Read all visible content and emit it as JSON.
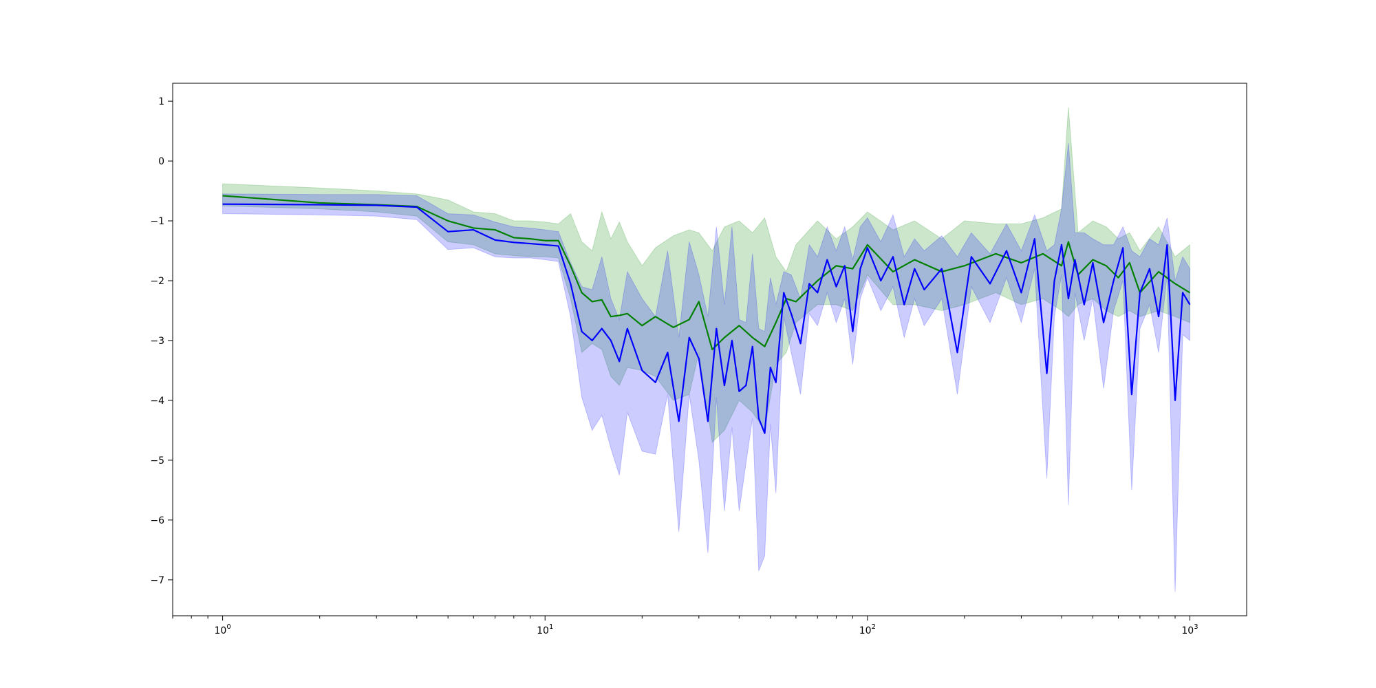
{
  "chart_data": {
    "type": "line",
    "title": "",
    "xlabel": "",
    "ylabel": "",
    "x_scale": "log",
    "xlim": [
      0.7,
      1500
    ],
    "ylim": [
      -7.6,
      1.3
    ],
    "grid": false,
    "x_ticks": [
      {
        "value": 1,
        "base": "10",
        "exp": "0"
      },
      {
        "value": 10,
        "base": "10",
        "exp": "1"
      },
      {
        "value": 100,
        "base": "10",
        "exp": "2"
      },
      {
        "value": 1000,
        "base": "10",
        "exp": "3"
      }
    ],
    "y_ticks": [
      {
        "value": 1,
        "label": "1"
      },
      {
        "value": 0,
        "label": "0"
      },
      {
        "value": -1,
        "label": "−1"
      },
      {
        "value": -2,
        "label": "−2"
      },
      {
        "value": -3,
        "label": "−3"
      },
      {
        "value": -4,
        "label": "−4"
      },
      {
        "value": -5,
        "label": "−5"
      },
      {
        "value": -6,
        "label": "−6"
      },
      {
        "value": -7,
        "label": "−7"
      }
    ],
    "series": [
      {
        "color": "#008000",
        "band_color": "#008000",
        "band_opacity": 0.2,
        "x": [
          1,
          2,
          3,
          4,
          5,
          6,
          7,
          8,
          9,
          10,
          11,
          12,
          13,
          14,
          15,
          16,
          17,
          18,
          20,
          22,
          25,
          28,
          30,
          33,
          36,
          40,
          44,
          48,
          52,
          56,
          60,
          70,
          80,
          90,
          100,
          120,
          140,
          170,
          200,
          250,
          300,
          350,
          400,
          420,
          450,
          500,
          550,
          600,
          650,
          700,
          800,
          900,
          1000
        ],
        "y": [
          -0.58,
          -0.7,
          -0.73,
          -0.76,
          -1.0,
          -1.12,
          -1.15,
          -1.28,
          -1.3,
          -1.33,
          -1.33,
          -1.75,
          -2.2,
          -2.35,
          -2.32,
          -2.6,
          -2.58,
          -2.55,
          -2.75,
          -2.6,
          -2.78,
          -2.65,
          -2.35,
          -3.15,
          -2.95,
          -2.75,
          -2.95,
          -3.1,
          -2.7,
          -2.3,
          -2.35,
          -2.0,
          -1.75,
          -1.8,
          -1.4,
          -1.85,
          -1.65,
          -1.85,
          -1.75,
          -1.55,
          -1.7,
          -1.55,
          -1.75,
          -1.35,
          -1.9,
          -1.65,
          -1.75,
          -1.95,
          -1.7,
          -2.2,
          -1.85,
          -2.05,
          -2.2
        ],
        "upper": [
          -0.38,
          -0.45,
          -0.5,
          -0.55,
          -0.65,
          -0.85,
          -0.88,
          -1.0,
          -1.0,
          -1.02,
          -1.05,
          -0.88,
          -1.35,
          -1.5,
          -0.85,
          -1.3,
          -1.02,
          -1.35,
          -1.75,
          -1.45,
          -1.25,
          -1.15,
          -1.2,
          -1.5,
          -1.1,
          -1.0,
          -1.2,
          -0.95,
          -1.6,
          -1.85,
          -1.4,
          -1.0,
          -1.3,
          -1.1,
          -0.85,
          -1.15,
          -1.0,
          -1.3,
          -1.0,
          -1.05,
          -1.05,
          -0.95,
          -0.8,
          0.9,
          -1.2,
          -1.0,
          -1.1,
          -1.3,
          -1.2,
          -1.5,
          -1.1,
          -1.6,
          -1.4
        ],
        "lower": [
          -0.75,
          -0.8,
          -0.85,
          -0.92,
          -1.35,
          -1.4,
          -1.55,
          -1.58,
          -1.6,
          -1.6,
          -1.62,
          -2.3,
          -3.2,
          -3.05,
          -3.15,
          -3.6,
          -3.75,
          -3.45,
          -3.5,
          -3.6,
          -4.0,
          -3.9,
          -3.2,
          -4.7,
          -4.5,
          -4.0,
          -4.2,
          -4.5,
          -3.4,
          -3.2,
          -2.7,
          -2.4,
          -2.4,
          -2.5,
          -1.9,
          -2.4,
          -2.4,
          -2.5,
          -2.4,
          -2.2,
          -2.4,
          -2.3,
          -2.5,
          -2.6,
          -2.4,
          -2.3,
          -2.5,
          -2.6,
          -2.5,
          -2.6,
          -2.5,
          -2.6,
          -2.7
        ]
      },
      {
        "color": "#0000ff",
        "band_color": "#0000ff",
        "band_opacity": 0.2,
        "x": [
          1,
          2,
          3,
          4,
          5,
          6,
          7,
          8,
          9,
          10,
          11,
          12,
          13,
          14,
          15,
          16,
          17,
          18,
          20,
          22,
          24,
          26,
          28,
          30,
          32,
          34,
          36,
          38,
          40,
          42,
          44,
          46,
          48,
          50,
          52,
          55,
          58,
          62,
          66,
          70,
          75,
          80,
          85,
          90,
          95,
          100,
          110,
          120,
          130,
          140,
          150,
          170,
          190,
          210,
          240,
          270,
          300,
          330,
          360,
          380,
          400,
          420,
          440,
          470,
          500,
          540,
          580,
          620,
          660,
          700,
          750,
          800,
          850,
          900,
          950,
          1000
        ],
        "y": [
          -0.72,
          -0.73,
          -0.74,
          -0.77,
          -1.18,
          -1.15,
          -1.32,
          -1.36,
          -1.38,
          -1.4,
          -1.42,
          -2.05,
          -2.85,
          -3.0,
          -2.8,
          -3.0,
          -3.35,
          -2.8,
          -3.5,
          -3.7,
          -3.2,
          -4.35,
          -2.95,
          -3.3,
          -4.35,
          -2.8,
          -3.75,
          -3.0,
          -3.85,
          -3.75,
          -3.1,
          -4.3,
          -4.55,
          -3.45,
          -3.7,
          -2.2,
          -2.55,
          -3.05,
          -2.05,
          -2.2,
          -1.65,
          -2.1,
          -1.75,
          -2.85,
          -1.8,
          -1.45,
          -2.0,
          -1.6,
          -2.4,
          -1.8,
          -2.15,
          -1.8,
          -3.2,
          -1.6,
          -2.05,
          -1.5,
          -2.2,
          -1.3,
          -3.55,
          -2.0,
          -1.4,
          -2.3,
          -1.65,
          -2.4,
          -1.7,
          -2.7,
          -2.0,
          -1.45,
          -3.9,
          -2.2,
          -1.8,
          -2.6,
          -1.4,
          -4.0,
          -2.2,
          -2.4
        ],
        "upper": [
          -0.55,
          -0.56,
          -0.56,
          -0.58,
          -0.88,
          -0.9,
          -1.02,
          -1.1,
          -1.12,
          -1.15,
          -1.18,
          -1.7,
          -2.1,
          -2.15,
          -1.6,
          -2.3,
          -2.65,
          -1.85,
          -2.3,
          -2.6,
          -1.5,
          -2.95,
          -1.35,
          -1.9,
          -2.6,
          -1.1,
          -2.4,
          -1.1,
          -2.65,
          -2.7,
          -1.55,
          -2.8,
          -2.85,
          -1.95,
          -2.4,
          -1.85,
          -1.9,
          -2.3,
          -1.4,
          -1.6,
          -1.1,
          -1.5,
          -1.1,
          -1.65,
          -1.1,
          -0.95,
          -1.35,
          -0.9,
          -1.6,
          -1.3,
          -1.5,
          -1.25,
          -1.6,
          -1.2,
          -1.55,
          -1.05,
          -1.5,
          -0.9,
          -1.5,
          -1.4,
          -0.8,
          0.3,
          -1.2,
          -1.2,
          -1.3,
          -1.4,
          -1.4,
          -1.1,
          -1.5,
          -1.6,
          -1.3,
          -1.4,
          -0.95,
          -2.0,
          -1.6,
          -1.8
        ],
        "lower": [
          -0.88,
          -0.9,
          -0.92,
          -0.98,
          -1.48,
          -1.45,
          -1.6,
          -1.62,
          -1.62,
          -1.65,
          -1.68,
          -2.6,
          -3.95,
          -4.5,
          -4.25,
          -4.8,
          -5.25,
          -4.2,
          -4.85,
          -4.9,
          -3.9,
          -6.2,
          -3.9,
          -5.0,
          -6.55,
          -3.95,
          -5.85,
          -4.45,
          -5.85,
          -5.05,
          -4.3,
          -6.85,
          -6.6,
          -4.4,
          -5.55,
          -2.6,
          -3.2,
          -3.9,
          -2.55,
          -2.75,
          -2.2,
          -2.7,
          -2.3,
          -3.4,
          -2.3,
          -1.95,
          -2.5,
          -2.1,
          -2.95,
          -2.3,
          -2.75,
          -2.3,
          -3.9,
          -2.1,
          -2.7,
          -1.95,
          -2.7,
          -1.8,
          -5.3,
          -2.6,
          -1.9,
          -5.75,
          -2.2,
          -3.0,
          -2.3,
          -3.8,
          -2.5,
          -2.0,
          -5.5,
          -2.8,
          -2.4,
          -3.2,
          -1.9,
          -7.2,
          -2.9,
          -3.0
        ]
      }
    ]
  }
}
